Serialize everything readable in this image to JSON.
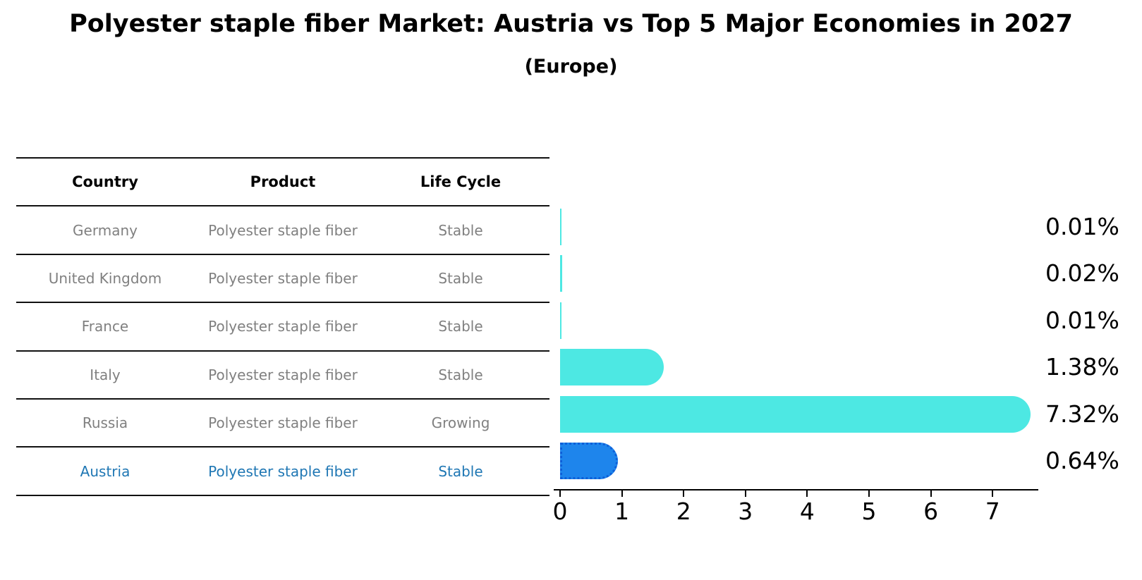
{
  "title": "Polyester staple fiber Market: Austria vs Top 5 Major Economies in 2027",
  "subtitle": "(Europe)",
  "table": {
    "headers": [
      "Country",
      "Product",
      "Life Cycle"
    ],
    "rows": [
      {
        "country": "Germany",
        "product": "Polyester staple fiber",
        "life_cycle": "Stable",
        "highlight": false
      },
      {
        "country": "United Kingdom",
        "product": "Polyester staple fiber",
        "life_cycle": "Stable",
        "highlight": false
      },
      {
        "country": "France",
        "product": "Polyester staple fiber",
        "life_cycle": "Stable",
        "highlight": false
      },
      {
        "country": "Italy",
        "product": "Polyester staple fiber",
        "life_cycle": "Stable",
        "highlight": false
      },
      {
        "country": "Russia",
        "product": "Polyester staple fiber",
        "life_cycle": "Growing",
        "highlight": false
      },
      {
        "country": "Austria",
        "product": "Polyester staple fiber",
        "life_cycle": "Stable",
        "highlight": true
      }
    ]
  },
  "chart_data": {
    "type": "bar",
    "orientation": "horizontal",
    "title": "Polyester staple fiber Market: Austria vs Top 5 Major Economies in 2027 (Europe)",
    "categories": [
      "Germany",
      "United Kingdom",
      "France",
      "Italy",
      "Russia",
      "Austria"
    ],
    "values": [
      0.01,
      0.02,
      0.01,
      1.38,
      7.32,
      0.64
    ],
    "labels": [
      "0.01%",
      "0.02%",
      "0.01%",
      "1.38%",
      "7.32%",
      "0.64%"
    ],
    "x_ticks": [
      "0",
      "1",
      "2",
      "3",
      "4",
      "5",
      "6",
      "7"
    ],
    "xlim": [
      0,
      7.7
    ],
    "grid": false,
    "legend": false,
    "highlight_category": "Austria"
  },
  "colors": {
    "bar_default": "#4de8e3",
    "bar_highlight": "#1e85ec",
    "bar_highlight_border": "#0e5fd8",
    "highlight_text": "#1f77b4",
    "table_text": "#808080",
    "axis_text": "#000000"
  }
}
